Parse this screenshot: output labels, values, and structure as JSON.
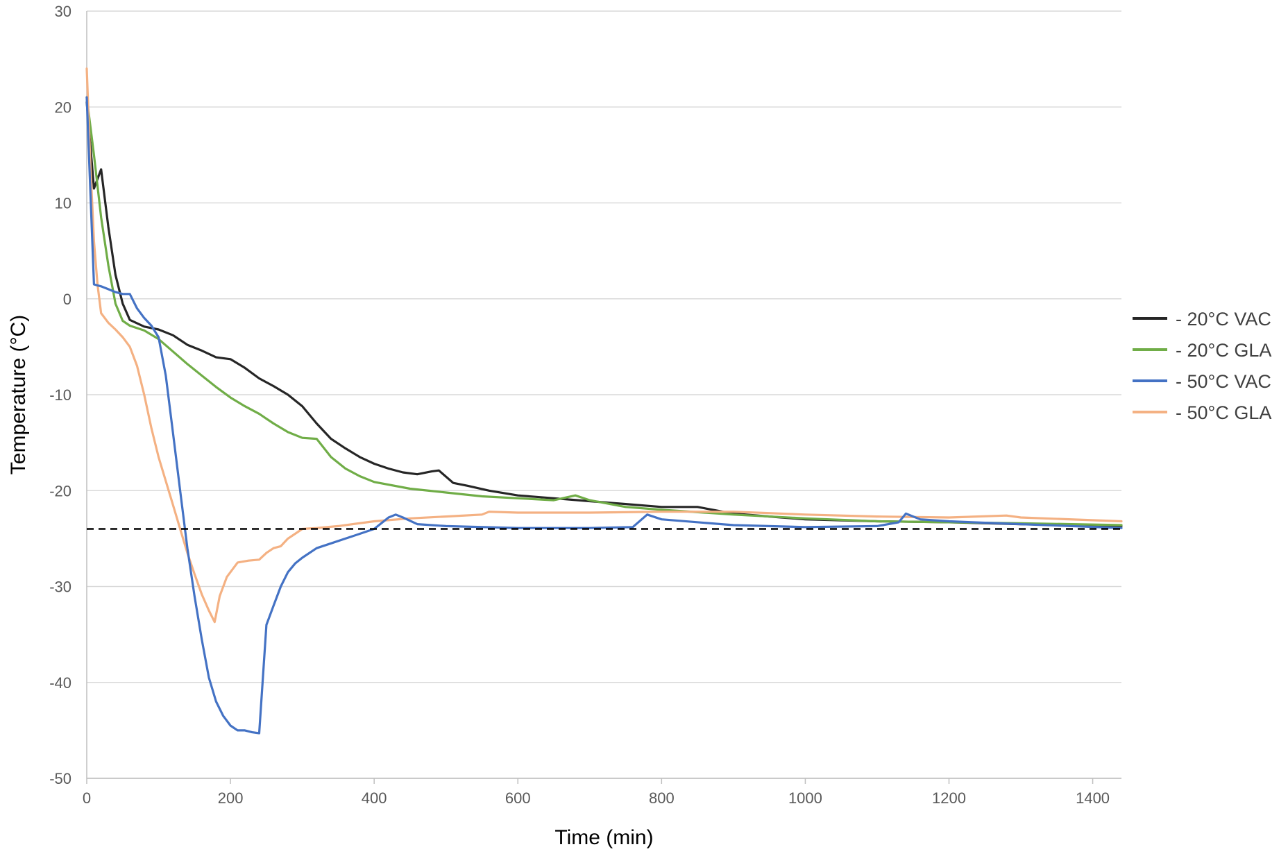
{
  "chart_data": {
    "type": "line",
    "title": "",
    "xlabel": "Time (min)",
    "ylabel": "Temperature (°C)",
    "xlim": [
      0,
      1440
    ],
    "ylim": [
      -50,
      30
    ],
    "xticks": [
      "0",
      "200",
      "400",
      "600",
      "800",
      "1000",
      "1200",
      "1400"
    ],
    "yticks": [
      "30",
      "20",
      "10",
      "0",
      "-10",
      "-20",
      "-30",
      "-40",
      "-50"
    ],
    "grid": "horizontal",
    "legend_position": "right",
    "reference_line": {
      "y": -24,
      "style": "dashed",
      "color": "#000000"
    },
    "series": [
      {
        "name": "- 20°C VAC",
        "color": "#262626",
        "x": [
          0,
          10,
          20,
          30,
          40,
          50,
          60,
          80,
          100,
          120,
          140,
          160,
          180,
          200,
          220,
          240,
          260,
          280,
          300,
          320,
          340,
          360,
          380,
          400,
          420,
          440,
          460,
          480,
          490,
          510,
          530,
          560,
          600,
          650,
          700,
          750,
          800,
          850,
          900,
          950,
          1000,
          1100,
          1200,
          1300,
          1380,
          1440
        ],
        "y": [
          20.5,
          11.5,
          13.5,
          7.5,
          2.5,
          -0.5,
          -2.2,
          -2.9,
          -3.2,
          -3.8,
          -4.8,
          -5.4,
          -6.1,
          -6.3,
          -7.2,
          -8.3,
          -9.1,
          -10.0,
          -11.2,
          -13.0,
          -14.6,
          -15.6,
          -16.5,
          -17.2,
          -17.7,
          -18.1,
          -18.3,
          -18.0,
          -17.9,
          -19.2,
          -19.5,
          -20.0,
          -20.5,
          -20.8,
          -21.1,
          -21.4,
          -21.7,
          -21.7,
          -22.4,
          -22.7,
          -23.0,
          -23.2,
          -23.3,
          -23.5,
          -23.6,
          -23.7
        ]
      },
      {
        "name": "- 20°C GLA",
        "color": "#70ad47",
        "x": [
          0,
          10,
          20,
          30,
          40,
          50,
          60,
          80,
          100,
          120,
          140,
          160,
          180,
          200,
          220,
          240,
          260,
          280,
          300,
          320,
          340,
          360,
          380,
          400,
          450,
          500,
          550,
          600,
          650,
          680,
          700,
          750,
          800,
          900,
          1000,
          1100,
          1200,
          1300,
          1440
        ],
        "y": [
          21.0,
          15.0,
          8.5,
          3.5,
          -0.5,
          -2.3,
          -2.8,
          -3.3,
          -4.2,
          -5.5,
          -6.8,
          -8.0,
          -9.2,
          -10.3,
          -11.2,
          -12.0,
          -13.0,
          -13.9,
          -14.5,
          -14.6,
          -16.5,
          -17.7,
          -18.5,
          -19.1,
          -19.8,
          -20.2,
          -20.6,
          -20.8,
          -21.0,
          -20.5,
          -21.0,
          -21.7,
          -22.0,
          -22.5,
          -22.9,
          -23.2,
          -23.3,
          -23.4,
          -23.6
        ]
      },
      {
        "name": "- 50°C VAC",
        "color": "#4472c4",
        "x": [
          0,
          10,
          20,
          30,
          40,
          50,
          60,
          70,
          80,
          90,
          100,
          110,
          120,
          130,
          140,
          150,
          160,
          170,
          180,
          190,
          200,
          210,
          220,
          230,
          240,
          250,
          260,
          270,
          280,
          290,
          300,
          320,
          340,
          360,
          380,
          400,
          420,
          430,
          440,
          460,
          500,
          600,
          700,
          760,
          780,
          800,
          900,
          1000,
          1100,
          1130,
          1140,
          1160,
          1200,
          1300,
          1440
        ],
        "y": [
          21.0,
          1.5,
          1.3,
          1.0,
          0.7,
          0.5,
          0.5,
          -1.0,
          -2.0,
          -2.8,
          -4.0,
          -8.0,
          -14.0,
          -20.0,
          -26.0,
          -31.0,
          -35.5,
          -39.5,
          -42.0,
          -43.5,
          -44.5,
          -45.0,
          -45.0,
          -45.2,
          -45.3,
          -34.0,
          -32.0,
          -30.0,
          -28.5,
          -27.6,
          -27.0,
          -26.0,
          -25.5,
          -25.0,
          -24.5,
          -24.0,
          -22.8,
          -22.5,
          -22.8,
          -23.5,
          -23.7,
          -23.9,
          -23.9,
          -23.8,
          -22.5,
          -23.0,
          -23.6,
          -23.8,
          -23.7,
          -23.3,
          -22.4,
          -23.0,
          -23.2,
          -23.5,
          -23.9
        ]
      },
      {
        "name": "- 50°C GLA",
        "color": "#f4b183",
        "x": [
          0,
          5,
          10,
          15,
          20,
          30,
          40,
          50,
          60,
          70,
          80,
          90,
          100,
          110,
          120,
          130,
          140,
          150,
          160,
          170,
          178,
          185,
          195,
          210,
          225,
          240,
          250,
          260,
          270,
          280,
          290,
          300,
          320,
          350,
          400,
          450,
          500,
          550,
          560,
          600,
          700,
          800,
          900,
          1000,
          1100,
          1200,
          1280,
          1300,
          1440
        ],
        "y": [
          24.0,
          14.0,
          6.0,
          1.5,
          -1.5,
          -2.5,
          -3.2,
          -4.0,
          -5.0,
          -7.0,
          -10.0,
          -13.5,
          -16.5,
          -19.0,
          -21.5,
          -24.0,
          -26.5,
          -28.7,
          -30.8,
          -32.5,
          -33.7,
          -31.0,
          -29.0,
          -27.5,
          -27.3,
          -27.2,
          -26.5,
          -26.0,
          -25.8,
          -25.0,
          -24.5,
          -24.0,
          -23.9,
          -23.7,
          -23.2,
          -22.9,
          -22.7,
          -22.5,
          -22.2,
          -22.3,
          -22.3,
          -22.2,
          -22.2,
          -22.5,
          -22.7,
          -22.8,
          -22.6,
          -22.8,
          -23.2
        ]
      }
    ]
  }
}
